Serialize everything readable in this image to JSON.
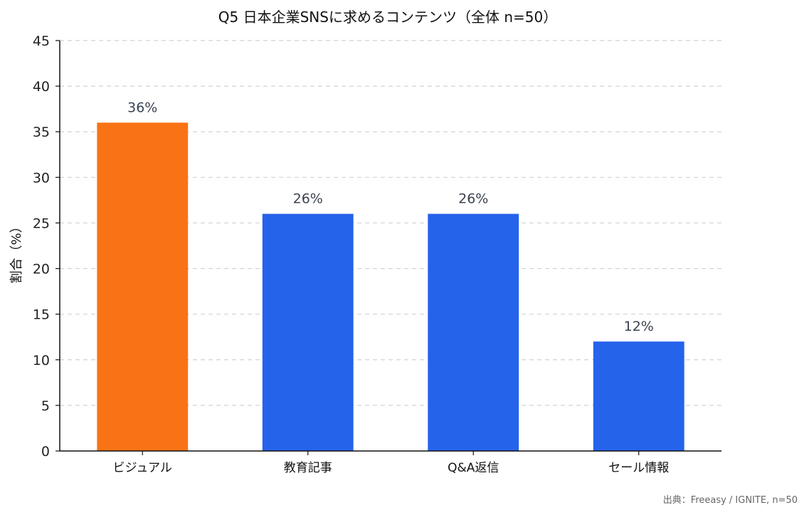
{
  "chart_data": {
    "type": "bar",
    "title": "Q5 日本企業SNSに求めるコンテンツ（全体 n=50）",
    "xlabel": "",
    "ylabel": "割合（%）",
    "categories": [
      "ビジュアル",
      "教育記事",
      "Q&A返信",
      "セール情報"
    ],
    "values": [
      36,
      26,
      26,
      12
    ],
    "data_labels": [
      "36%",
      "26%",
      "26%",
      "12%"
    ],
    "bar_colors": [
      "#F97316",
      "#2563EB",
      "#2563EB",
      "#2563EB"
    ],
    "ylim": [
      0,
      45
    ],
    "yticks": [
      0,
      5,
      10,
      15,
      20,
      25,
      30,
      35,
      40,
      45
    ],
    "grid": true,
    "legend": false
  },
  "source_note": "出典：Freeasy / IGNITE, n=50"
}
